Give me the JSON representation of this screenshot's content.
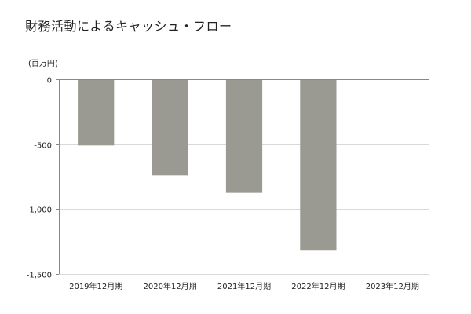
{
  "page": {
    "title": "財務活動によるキャッシュ・フロー",
    "unit": "(百万円)"
  },
  "chart_data": {
    "type": "bar",
    "title": "財務活動によるキャッシュ・フロー",
    "ylabel": "(百万円)",
    "xlabel": "",
    "categories": [
      "2019年12月期",
      "2020年12月期",
      "2021年12月期",
      "2022年12月期",
      "2023年12月期"
    ],
    "series": [
      {
        "values": [
          -510,
          -740,
          -875,
          -1320,
          null
        ]
      }
    ],
    "ylim": [
      -1500,
      0
    ],
    "yticks": [
      0,
      -500,
      -1000,
      -1500
    ],
    "ytick_labels": [
      "0",
      "-500",
      "-1,000",
      "-1,500"
    ],
    "grid": true,
    "legend": "none",
    "colors": {
      "bar": "#9a9a92",
      "grid": "#d9d9d9",
      "axis": "#888888"
    }
  }
}
